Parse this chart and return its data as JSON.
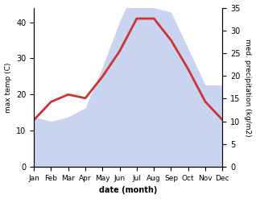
{
  "months": [
    "Jan",
    "Feb",
    "Mar",
    "Apr",
    "May",
    "Jun",
    "Jul",
    "Aug",
    "Sep",
    "Oct",
    "Nov",
    "Dec"
  ],
  "temp": [
    13,
    18,
    20,
    19,
    25,
    32,
    41,
    41,
    35,
    27,
    18,
    13
  ],
  "precip": [
    11,
    10,
    11,
    13,
    22,
    32,
    40,
    35,
    34,
    26,
    18,
    18
  ],
  "temp_color": "#cc3333",
  "precip_color_fill": "#c8d4f0",
  "temp_ylim": [
    0,
    44
  ],
  "precip_ylim": [
    0,
    35
  ],
  "temp_yticks": [
    0,
    10,
    20,
    30,
    40
  ],
  "precip_yticks": [
    0,
    5,
    10,
    15,
    20,
    25,
    30,
    35
  ],
  "xlabel": "date (month)",
  "ylabel_left": "max temp (C)",
  "ylabel_right": "med. precipitation (kg/m2)",
  "line_width": 2.0,
  "bg_color": "#ffffff"
}
